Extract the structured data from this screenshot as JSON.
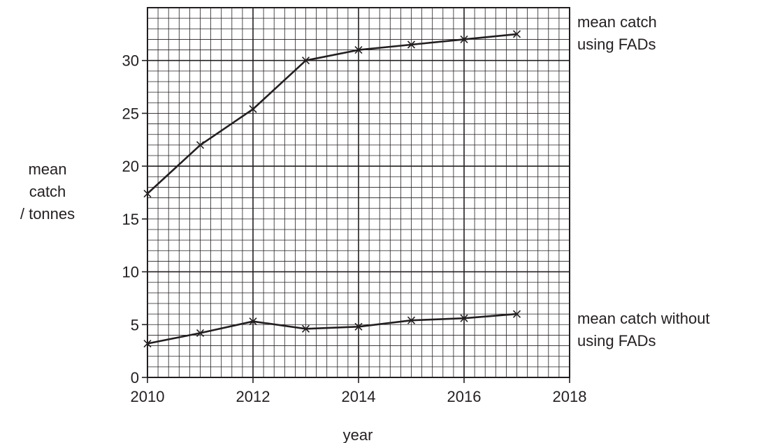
{
  "chart_data": {
    "type": "line",
    "xlabel": "year",
    "ylabel": [
      "mean",
      "catch",
      "/ tonnes"
    ],
    "xlim": [
      2010,
      2018
    ],
    "ylim": [
      0,
      35
    ],
    "x_ticks": [
      2010,
      2012,
      2014,
      2016,
      2018
    ],
    "y_ticks": [
      0,
      5,
      10,
      15,
      20,
      25,
      30
    ],
    "grid": true,
    "series": [
      {
        "name": [
          "mean catch",
          "using FADs"
        ],
        "x": [
          2010,
          2011,
          2012,
          2013,
          2014,
          2015,
          2016,
          2017
        ],
        "y": [
          17.4,
          22.0,
          25.4,
          30.0,
          31.0,
          31.5,
          32.0,
          32.5
        ]
      },
      {
        "name": [
          "mean catch without",
          "using FADs"
        ],
        "x": [
          2010,
          2011,
          2012,
          2013,
          2014,
          2015,
          2016,
          2017
        ],
        "y": [
          3.2,
          4.2,
          5.3,
          4.6,
          4.8,
          5.4,
          5.6,
          6.0
        ]
      }
    ]
  }
}
